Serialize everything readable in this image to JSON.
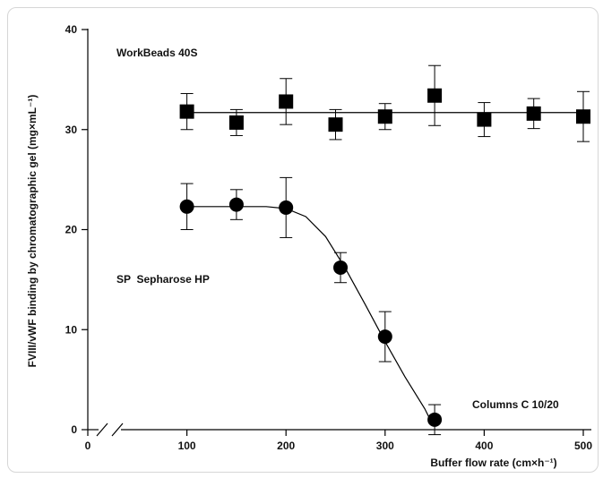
{
  "chart_data": {
    "type": "scatter",
    "ylabel": "FVIII/vWF binding by chromatographic gel (mg×mL⁻¹)",
    "xlabel": "Buffer flow rate (cm×h⁻¹)",
    "xlim": [
      0,
      500
    ],
    "ylim": [
      0,
      40
    ],
    "x_ticks": [
      0,
      100,
      200,
      300,
      400,
      500
    ],
    "y_ticks": [
      0,
      10,
      20,
      30,
      40
    ],
    "x_axis_break": true,
    "grid": false,
    "series": [
      {
        "name": "WorkBeads 40S",
        "marker": "square",
        "color": "#000000",
        "x": [
          100,
          150,
          200,
          250,
          300,
          350,
          400,
          450,
          500
        ],
        "y": [
          31.8,
          30.7,
          32.8,
          30.5,
          31.3,
          33.4,
          31.0,
          31.6,
          31.3
        ],
        "err": [
          1.8,
          1.3,
          2.3,
          1.5,
          1.3,
          3.0,
          1.7,
          1.5,
          2.5
        ],
        "fit_y": 31.7
      },
      {
        "name": "SP Sepharose HP",
        "marker": "circle",
        "color": "#000000",
        "x": [
          100,
          150,
          200,
          255,
          300,
          350
        ],
        "y": [
          22.3,
          22.5,
          22.2,
          16.2,
          9.3,
          1.0
        ],
        "err": [
          2.3,
          1.5,
          3.0,
          1.5,
          2.5,
          1.5
        ],
        "fit_curve": [
          [
            100,
            22.3
          ],
          [
            150,
            22.3
          ],
          [
            180,
            22.3
          ],
          [
            200,
            22.1
          ],
          [
            220,
            21.3
          ],
          [
            240,
            19.3
          ],
          [
            260,
            16.1
          ],
          [
            280,
            12.5
          ],
          [
            300,
            8.8
          ],
          [
            320,
            5.3
          ],
          [
            340,
            2.1
          ],
          [
            345,
            1.1
          ]
        ]
      }
    ],
    "annotations": [
      "WorkBeads 40S",
      "SP  Sepharose HP",
      "Columns C 10/20"
    ]
  }
}
